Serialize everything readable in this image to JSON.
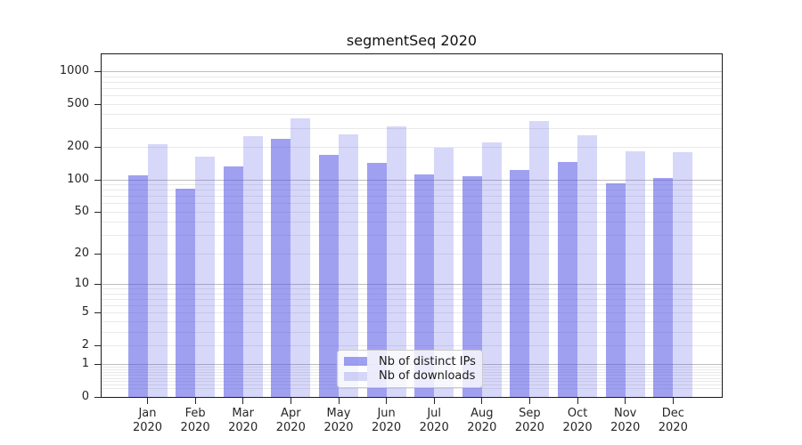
{
  "chart_data": {
    "type": "bar",
    "title": "segmentSeq 2020",
    "categories": [
      "Jan",
      "Feb",
      "Mar",
      "Apr",
      "May",
      "Jun",
      "Jul",
      "Aug",
      "Sep",
      "Oct",
      "Nov",
      "Dec"
    ],
    "category_sublabel": "2020",
    "series": [
      {
        "name": "Nb of distinct IPs",
        "color": "rgba(82,82,229,0.55)",
        "values": [
          109,
          82,
          132,
          237,
          168,
          142,
          112,
          107,
          123,
          146,
          91,
          102
        ]
      },
      {
        "name": "Nb of downloads",
        "color": "rgba(82,82,229,0.23)",
        "values": [
          212,
          162,
          252,
          367,
          261,
          310,
          196,
          220,
          347,
          257,
          183,
          180
        ]
      }
    ],
    "yscale": "log10(1+v)",
    "ylim": [
      0,
      1430
    ],
    "yticks": [
      0,
      1,
      2,
      5,
      10,
      20,
      50,
      100,
      200,
      500,
      1000
    ],
    "grid": "major-and-minor, horizontal only",
    "legend_position": "lower center",
    "colors": {
      "distinct_ips_rendered": "#a0a0f1",
      "downloads_rendered": "#d7d7f9",
      "major_grid": "#bdbdbd",
      "minor_grid": "#e9e9e9",
      "spine": "#1a1a1a"
    }
  }
}
